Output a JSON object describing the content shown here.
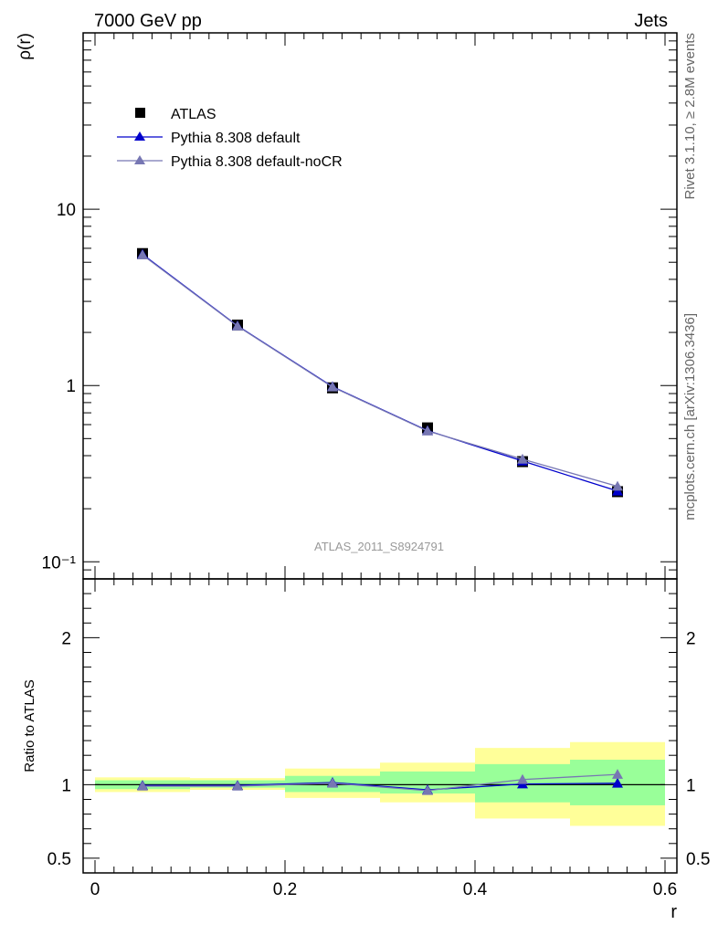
{
  "header": {
    "left": "7000 GeV pp",
    "right": "Jets"
  },
  "side_labels": {
    "rivet": "Rivet 3.1.10, ≥ 2.8M events",
    "source": "mcplots.cern.ch [arXiv:1306.3436]"
  },
  "chart_data": [
    {
      "type": "line",
      "panel": "main",
      "ylabel": "ρ(r)",
      "yscale": "log",
      "ylim": [
        0.08,
        100
      ],
      "xlim": [
        -0.0125,
        0.6125
      ],
      "y_tick_labels": [
        "10⁻¹",
        "1",
        "10"
      ],
      "y_ticks": [
        0.1,
        1,
        10
      ],
      "watermark": "ATLAS_2011_S8924791",
      "legend_position": "top-left",
      "x": [
        0.05,
        0.15,
        0.25,
        0.35,
        0.45,
        0.55
      ],
      "series": [
        {
          "name": "ATLAS",
          "marker": "square",
          "color": "#000000",
          "values": [
            5.6,
            2.2,
            0.97,
            0.575,
            0.37,
            0.25
          ]
        },
        {
          "name": "Pythia 8.308 default",
          "marker": "triangle",
          "color": "#0000cc",
          "values": [
            5.55,
            2.18,
            0.985,
            0.555,
            0.373,
            0.252
          ]
        },
        {
          "name": "Pythia 8.308 default-noCR",
          "marker": "triangle",
          "color": "#7777b3",
          "values": [
            5.5,
            2.17,
            0.98,
            0.552,
            0.382,
            0.268
          ]
        }
      ]
    },
    {
      "type": "line",
      "panel": "ratio",
      "ylabel": "Ratio to ATLAS",
      "xlabel": "r",
      "ylim": [
        0.4,
        2.4
      ],
      "xlim": [
        -0.0125,
        0.6125
      ],
      "x_ticks": [
        0,
        0.2,
        0.4,
        0.6
      ],
      "x_tick_labels": [
        "0",
        "0.2",
        "0.4",
        "0.6"
      ],
      "y_ticks": [
        0.5,
        1,
        2
      ],
      "y_tick_labels": [
        "0.5",
        "1",
        "2"
      ],
      "bands": [
        {
          "x0": 0.0,
          "x1": 0.1,
          "inner": [
            0.97,
            1.03
          ],
          "outer": [
            0.95,
            1.05
          ]
        },
        {
          "x0": 0.1,
          "x1": 0.2,
          "inner": [
            0.98,
            1.03
          ],
          "outer": [
            0.965,
            1.045
          ]
        },
        {
          "x0": 0.2,
          "x1": 0.3,
          "inner": [
            0.95,
            1.06
          ],
          "outer": [
            0.91,
            1.11
          ]
        },
        {
          "x0": 0.3,
          "x1": 0.4,
          "inner": [
            0.94,
            1.09
          ],
          "outer": [
            0.88,
            1.15
          ]
        },
        {
          "x0": 0.4,
          "x1": 0.5,
          "inner": [
            0.88,
            1.14
          ],
          "outer": [
            0.77,
            1.25
          ]
        },
        {
          "x0": 0.5,
          "x1": 0.6,
          "inner": [
            0.86,
            1.17
          ],
          "outer": [
            0.72,
            1.29
          ]
        }
      ],
      "x": [
        0.05,
        0.15,
        0.25,
        0.35,
        0.45,
        0.55
      ],
      "series": [
        {
          "name": "Pythia 8.308 default",
          "color": "#0000cc",
          "values": [
            0.995,
            0.995,
            1.015,
            0.965,
            1.005,
            1.01
          ]
        },
        {
          "name": "Pythia 8.308 default-noCR",
          "color": "#7777b3",
          "values": [
            0.99,
            0.99,
            1.01,
            0.96,
            1.035,
            1.07
          ]
        }
      ]
    }
  ]
}
